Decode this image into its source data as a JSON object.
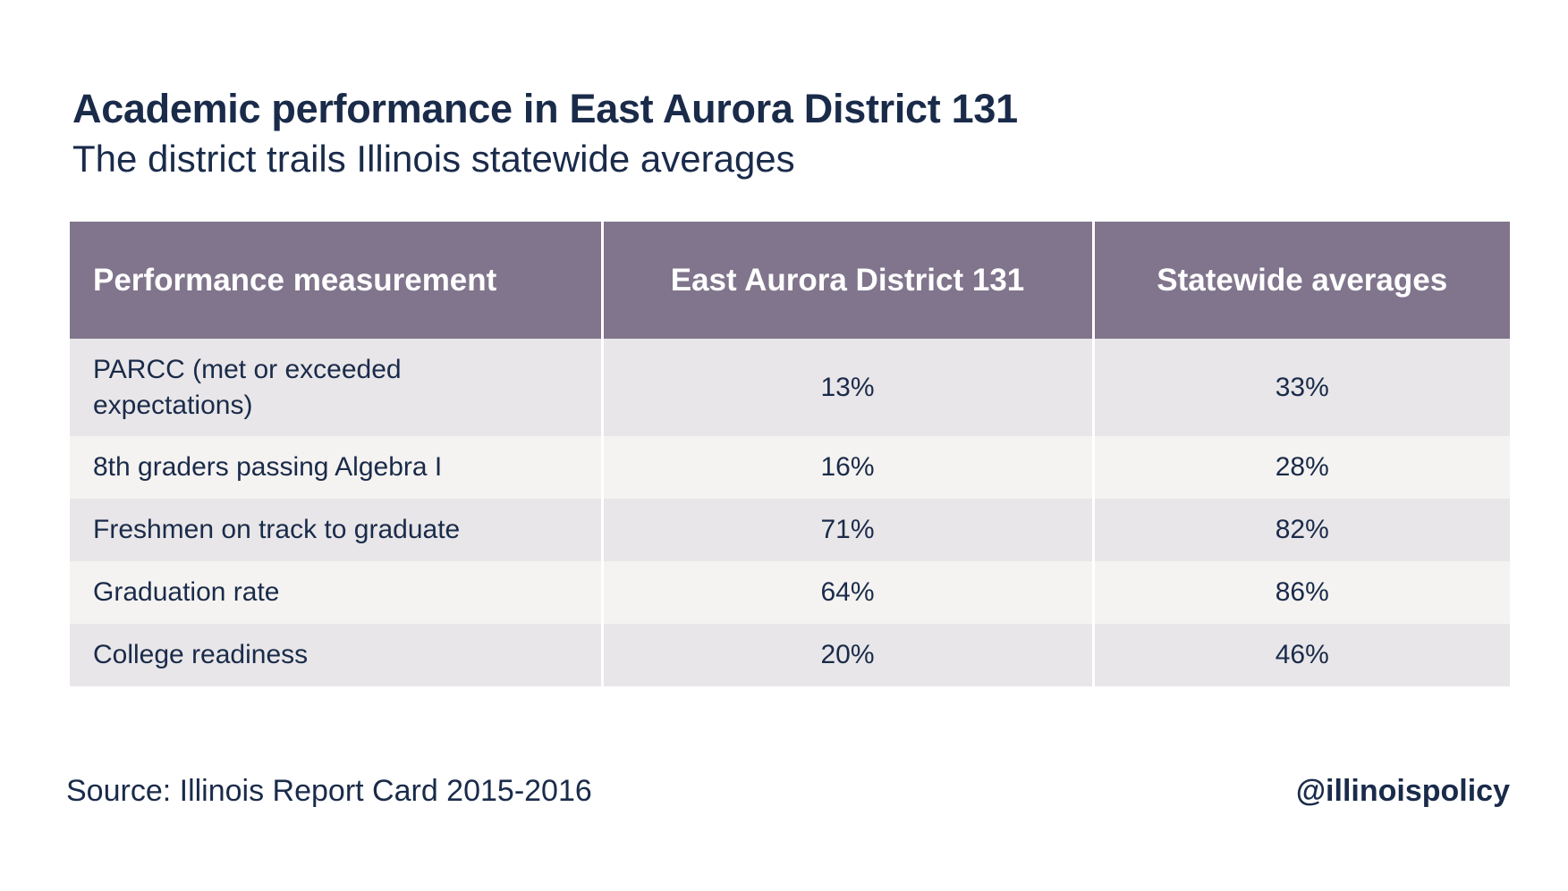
{
  "title": "Academic performance in East Aurora District 131",
  "subtitle": "The district trails Illinois statewide averages",
  "table": {
    "headers": [
      "Performance measurement",
      "East Aurora District 131",
      "Statewide averages"
    ],
    "rows": [
      [
        "PARCC (met or exceeded expectations)",
        "13%",
        "33%"
      ],
      [
        "8th graders passing Algebra I",
        "16%",
        "28%"
      ],
      [
        "Freshmen on track to graduate",
        "71%",
        "82%"
      ],
      [
        "Graduation rate",
        "64%",
        "86%"
      ],
      [
        "College readiness",
        "20%",
        "46%"
      ]
    ]
  },
  "source": "Source: Illinois Report Card 2015-2016",
  "handle": "@illinoispolicy",
  "colors": {
    "header_bg": "#80758c",
    "header_text": "#ffffff",
    "row_odd_bg": "#e8e6e8",
    "row_even_bg": "#f5f3f1",
    "text": "#1a2b4a"
  },
  "chart_data": {
    "type": "table",
    "title": "Academic performance in East Aurora District 131",
    "subtitle": "The district trails Illinois statewide averages",
    "columns": [
      "Performance measurement",
      "East Aurora District 131",
      "Statewide averages"
    ],
    "categories": [
      "PARCC (met or exceeded expectations)",
      "8th graders passing Algebra I",
      "Freshmen on track to graduate",
      "Graduation rate",
      "College readiness"
    ],
    "series": [
      {
        "name": "East Aurora District 131",
        "values": [
          13,
          16,
          71,
          64,
          20
        ]
      },
      {
        "name": "Statewide averages",
        "values": [
          33,
          28,
          82,
          86,
          46
        ]
      }
    ],
    "unit": "%"
  }
}
